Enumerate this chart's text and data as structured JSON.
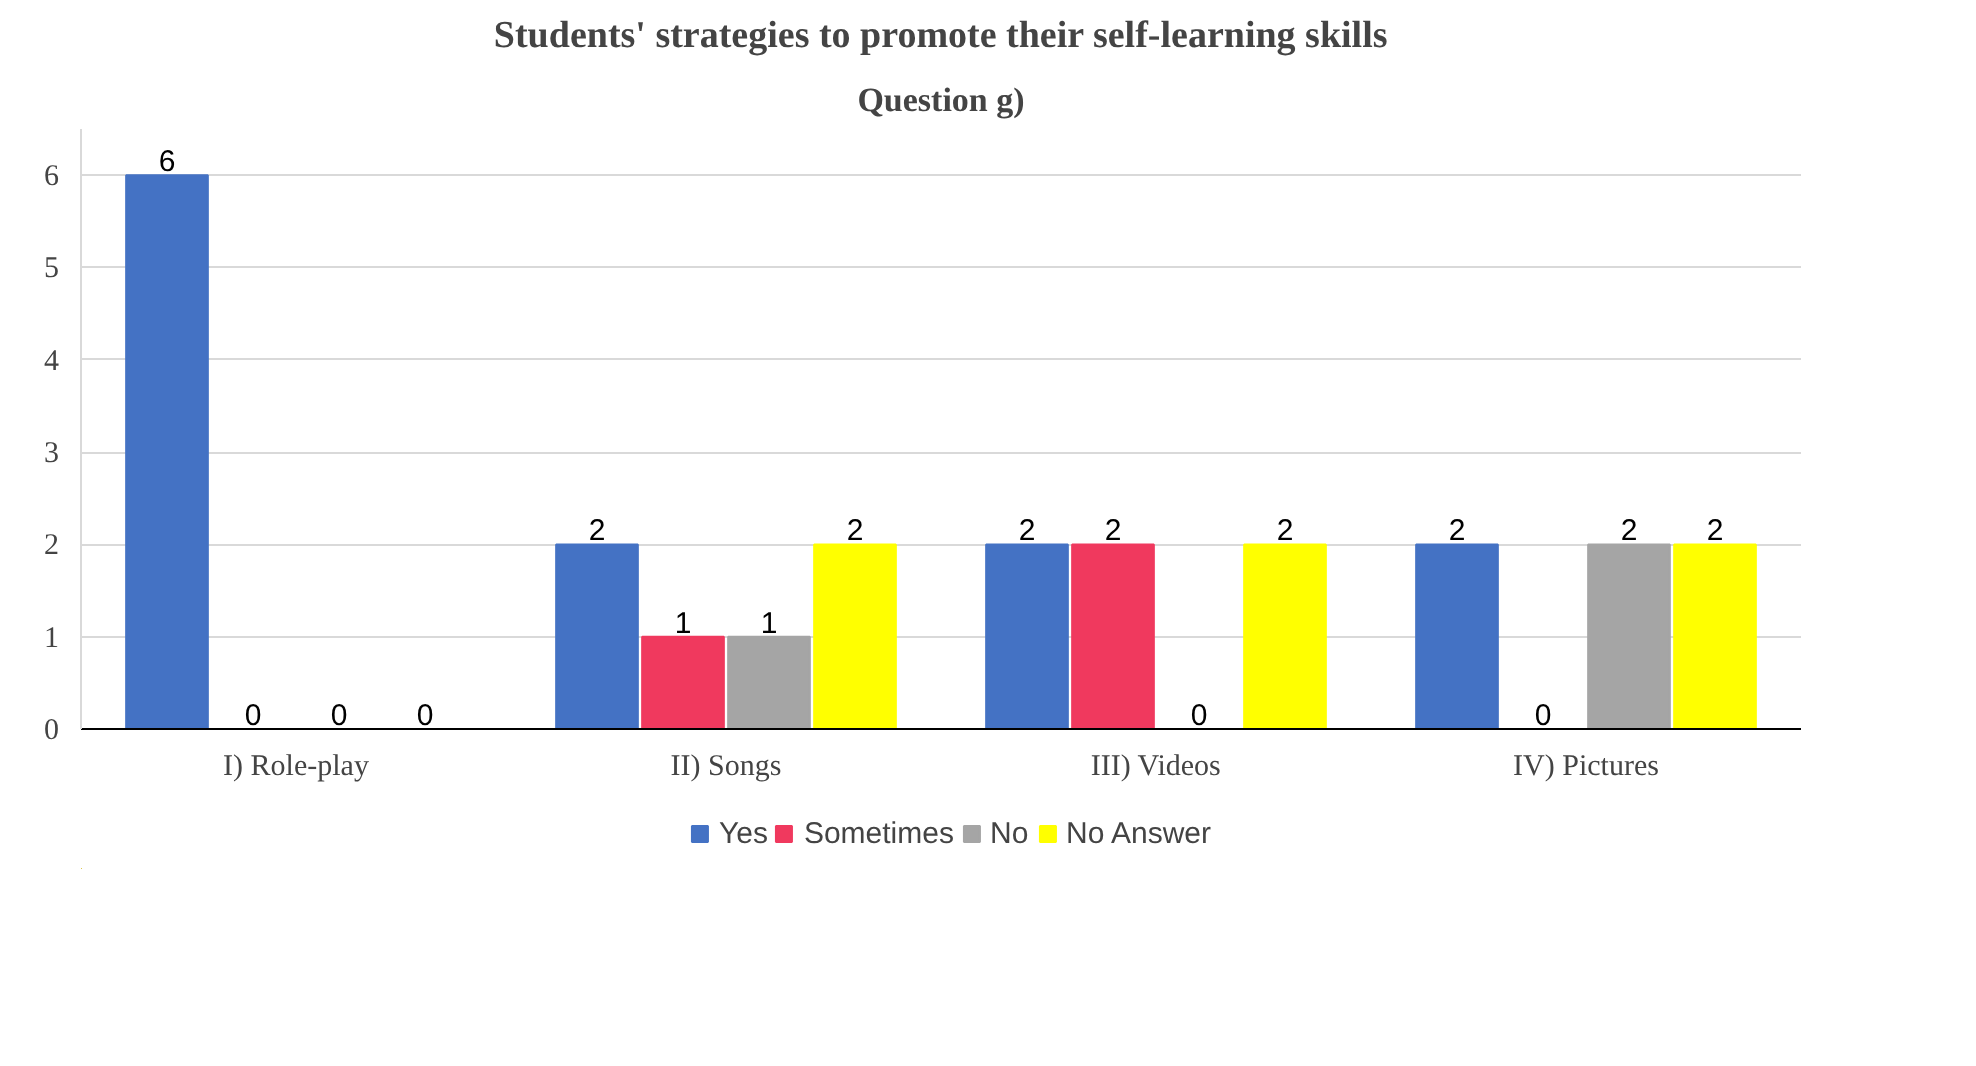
{
  "chart_data": {
    "type": "bar",
    "title": "Students' strategies to promote their self-learning skills",
    "subtitle": "Question g)",
    "categories": [
      "I) Role-play",
      "II) Songs",
      "III) Videos",
      "IV) Pictures"
    ],
    "series": [
      {
        "name": "Yes",
        "color": "#4472c4",
        "values": [
          6,
          2,
          2,
          2
        ]
      },
      {
        "name": "Sometimes",
        "color": "#f0395e",
        "values": [
          0,
          1,
          2,
          0
        ]
      },
      {
        "name": "No",
        "color": "#a5a5a5",
        "values": [
          0,
          1,
          0,
          2
        ]
      },
      {
        "name": "No Answer",
        "color": "#ffff00",
        "values": [
          0,
          2,
          2,
          2
        ]
      }
    ],
    "ylim": [
      0,
      6.5
    ],
    "yticks": [
      0,
      1,
      2,
      3,
      4,
      5,
      6
    ],
    "grid": "y",
    "legend": "bottom",
    "data_labels": true
  }
}
